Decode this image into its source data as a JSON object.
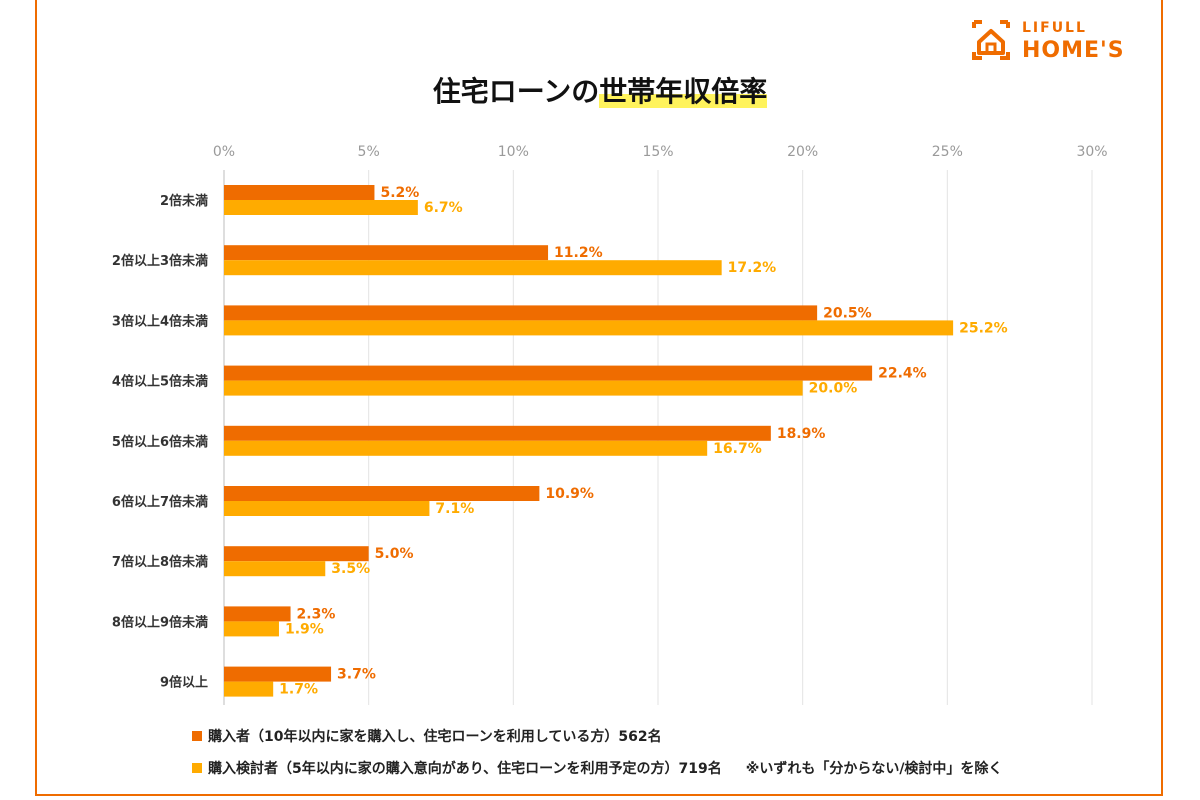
{
  "brand": {
    "logo_top": "LIFULL",
    "logo_bottom": "HOME'S"
  },
  "title": {
    "part1": "住宅ローンの",
    "part2": "世帯年収倍率"
  },
  "colors": {
    "purchaser": "#EF6C00",
    "considering": "#FFAB00",
    "highlight": "#FFF35C"
  },
  "legend": {
    "purchaser": "購入者（10年以内に家を購入し、住宅ローンを利用している方）562名",
    "considering": "購入検討者（5年以内に家の購入意向があり、住宅ローンを利用予定の方）719名",
    "note": "※いずれも「分からない/検討中」を除く"
  },
  "chart_data": {
    "type": "bar",
    "orientation": "horizontal",
    "xlim": [
      0,
      30
    ],
    "x_ticks": [
      "0%",
      "5%",
      "10%",
      "15%",
      "20%",
      "25%",
      "30%"
    ],
    "grid": true,
    "categories": [
      "2倍未満",
      "2倍以上3倍未満",
      "3倍以上4倍未満",
      "4倍以上5倍未満",
      "5倍以上6倍未満",
      "6倍以上7倍未満",
      "7倍以上8倍未満",
      "8倍以上9倍未満",
      "9倍以上"
    ],
    "series": [
      {
        "name": "購入者（10年以内に家を購入し、住宅ローンを利用している方）562名",
        "values": [
          5.2,
          11.2,
          20.5,
          22.4,
          18.9,
          10.9,
          5.0,
          2.3,
          3.7
        ],
        "labels": [
          "5.2%",
          "11.2%",
          "20.5%",
          "22.4%",
          "18.9%",
          "10.9%",
          "5.0%",
          "2.3%",
          "3.7%"
        ]
      },
      {
        "name": "購入検討者（5年以内に家の購入意向があり、住宅ローンを利用予定の方）719名",
        "values": [
          6.7,
          17.2,
          25.2,
          20.0,
          16.7,
          7.1,
          3.5,
          1.9,
          1.7
        ],
        "labels": [
          "6.7%",
          "17.2%",
          "25.2%",
          "20.0%",
          "16.7%",
          "7.1%",
          "3.5%",
          "1.9%",
          "1.7%"
        ]
      }
    ],
    "legend_position": "bottom-left"
  }
}
